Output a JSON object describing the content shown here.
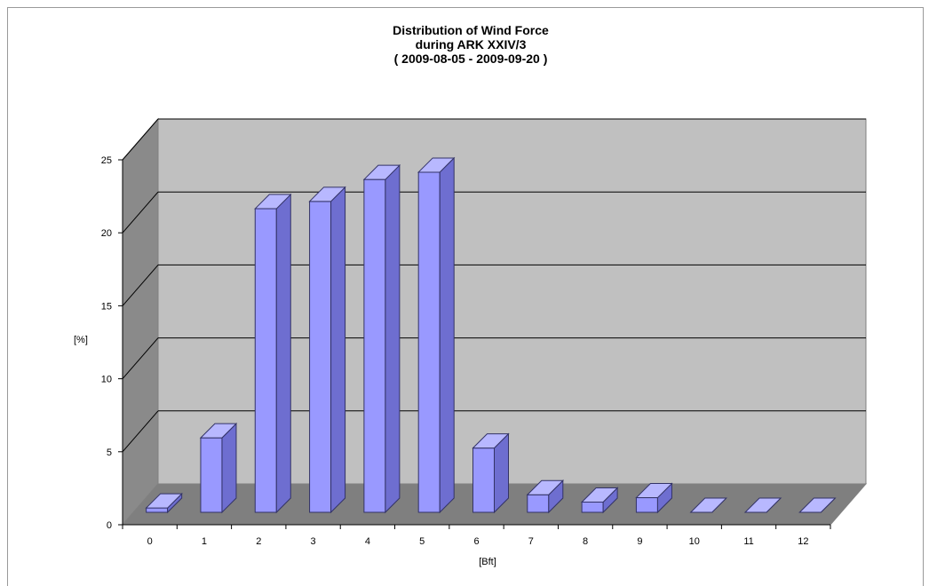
{
  "chart_data": {
    "type": "bar",
    "title": [
      "Distribution of Wind Force",
      "during ARK XXIV/3",
      "( 2009-08-05 - 2009-09-20 )"
    ],
    "xlabel": "[Bft]",
    "ylabel": "[%]",
    "ylim": [
      0,
      25
    ],
    "yticks": [
      "0",
      "5",
      "10",
      "15",
      "20",
      "25"
    ],
    "categories": [
      "0",
      "1",
      "2",
      "3",
      "4",
      "5",
      "6",
      "7",
      "8",
      "9",
      "10",
      "11",
      "12"
    ],
    "values": [
      0.3,
      5.1,
      20.8,
      21.3,
      22.8,
      23.3,
      4.4,
      1.2,
      0.7,
      1.0,
      0.0,
      0.0,
      0.0
    ],
    "grid": true,
    "legend": "none",
    "three_d": true,
    "colors": {
      "bar_front": "#9999ff",
      "bar_side": "#6e6ed0",
      "bar_top": "#b8b8ff",
      "wall": "#c0c0c0",
      "side_wall": "#8a8a8a",
      "floor": "#7f7f7f",
      "gridline": "#000000"
    }
  }
}
